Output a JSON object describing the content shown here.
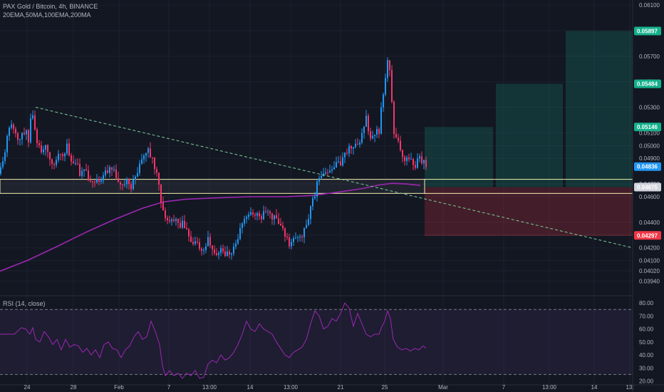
{
  "header": {
    "title": "PAX Gold / Bitcoin, 4h, BINANCE",
    "indicators": "20EMA,50MA,100EMA,200MA"
  },
  "rsi_label": "RSI (14, close)",
  "colors": {
    "background": "#131722",
    "grid": "#1c2030",
    "up": "#2196f3",
    "down": "#f23669",
    "ma": "#9c27b0",
    "trend": "#7ccf9b",
    "box": "#f5f0b0",
    "target": "#14b08c",
    "stop": "#f23645",
    "current": "#2196f3"
  },
  "chart_data": [
    {
      "type": "candlestick",
      "title": "PAX Gold / Bitcoin, 4h, BINANCE",
      "y_axis": {
        "range": [
          0.0383,
          0.0614
        ],
        "ticks": [
          "0.06100",
          "0.05900",
          "0.05700",
          "0.05500",
          "0.05300",
          "0.05100",
          "0.05000",
          "0.04900",
          "0.04700",
          "0.04600",
          "0.04400",
          "0.04300",
          "0.04200",
          "0.04100",
          "0.04020",
          "0.03940"
        ]
      },
      "x_axis": {
        "ticks": [
          {
            "label": "24",
            "x": 38
          },
          {
            "label": "28",
            "x": 103
          },
          {
            "label": "Feb",
            "x": 167
          },
          {
            "label": "7",
            "x": 237
          },
          {
            "label": "13:00",
            "x": 294
          },
          {
            "label": "14",
            "x": 351
          },
          {
            "label": "13:00",
            "x": 408
          },
          {
            "label": "21",
            "x": 478
          },
          {
            "label": "25",
            "x": 540
          },
          {
            "label": "Mar",
            "x": 622
          },
          {
            "label": "7",
            "x": 707
          },
          {
            "label": "13:00",
            "x": 771
          },
          {
            "label": "14",
            "x": 834
          },
          {
            "label": "13:",
            "x": 884
          }
        ]
      },
      "price_path": [
        [
          0,
          0.0478
        ],
        [
          6,
          0.0494
        ],
        [
          12,
          0.051
        ],
        [
          18,
          0.0516
        ],
        [
          24,
          0.0505
        ],
        [
          30,
          0.0508
        ],
        [
          36,
          0.0512
        ],
        [
          40,
          0.0502
        ],
        [
          44,
          0.053
        ],
        [
          48,
          0.052
        ],
        [
          52,
          0.05
        ],
        [
          58,
          0.0496
        ],
        [
          64,
          0.0503
        ],
        [
          70,
          0.049
        ],
        [
          76,
          0.0487
        ],
        [
          82,
          0.0496
        ],
        [
          88,
          0.0492
        ],
        [
          94,
          0.05
        ],
        [
          100,
          0.0489
        ],
        [
          106,
          0.0487
        ],
        [
          112,
          0.0479
        ],
        [
          118,
          0.0482
        ],
        [
          124,
          0.0476
        ],
        [
          130,
          0.0472
        ],
        [
          136,
          0.0476
        ],
        [
          142,
          0.0471
        ],
        [
          148,
          0.048
        ],
        [
          154,
          0.0483
        ],
        [
          160,
          0.0479
        ],
        [
          166,
          0.047
        ],
        [
          172,
          0.0467
        ],
        [
          178,
          0.0471
        ],
        [
          184,
          0.0469
        ],
        [
          190,
          0.0475
        ],
        [
          196,
          0.0487
        ],
        [
          202,
          0.0492
        ],
        [
          208,
          0.0495
        ],
        [
          214,
          0.049
        ],
        [
          220,
          0.0478
        ],
        [
          226,
          0.0458
        ],
        [
          232,
          0.0442
        ],
        [
          238,
          0.044
        ],
        [
          244,
          0.0442
        ],
        [
          250,
          0.0438
        ],
        [
          256,
          0.0439
        ],
        [
          262,
          0.0434
        ],
        [
          268,
          0.0424
        ],
        [
          274,
          0.0425
        ],
        [
          280,
          0.042
        ],
        [
          286,
          0.0418
        ],
        [
          292,
          0.0426
        ],
        [
          298,
          0.042
        ],
        [
          304,
          0.0414
        ],
        [
          310,
          0.042
        ],
        [
          316,
          0.0416
        ],
        [
          322,
          0.0413
        ],
        [
          328,
          0.042
        ],
        [
          334,
          0.0428
        ],
        [
          340,
          0.0437
        ],
        [
          346,
          0.0444
        ],
        [
          352,
          0.0446
        ],
        [
          358,
          0.0447
        ],
        [
          364,
          0.0443
        ],
        [
          370,
          0.0446
        ],
        [
          376,
          0.0449
        ],
        [
          382,
          0.0445
        ],
        [
          388,
          0.0442
        ],
        [
          394,
          0.0439
        ],
        [
          400,
          0.0431
        ],
        [
          406,
          0.0424
        ],
        [
          412,
          0.0426
        ],
        [
          418,
          0.0428
        ],
        [
          424,
          0.0431
        ],
        [
          430,
          0.0436
        ],
        [
          436,
          0.0452
        ],
        [
          442,
          0.0463
        ],
        [
          448,
          0.0475
        ],
        [
          454,
          0.0477
        ],
        [
          460,
          0.048
        ],
        [
          466,
          0.0479
        ],
        [
          472,
          0.0485
        ],
        [
          478,
          0.0486
        ],
        [
          484,
          0.0492
        ],
        [
          490,
          0.0498
        ],
        [
          496,
          0.0496
        ],
        [
          502,
          0.0501
        ],
        [
          508,
          0.0507
        ],
        [
          514,
          0.0521
        ],
        [
          520,
          0.0506
        ],
        [
          526,
          0.0509
        ],
        [
          532,
          0.0512
        ],
        [
          536,
          0.0532
        ],
        [
          540,
          0.055
        ],
        [
          544,
          0.0566
        ],
        [
          548,
          0.0558
        ],
        [
          552,
          0.051
        ],
        [
          558,
          0.0503
        ],
        [
          564,
          0.0494
        ],
        [
          570,
          0.0488
        ],
        [
          576,
          0.0489
        ],
        [
          582,
          0.0484
        ],
        [
          588,
          0.0489
        ],
        [
          594,
          0.0487
        ],
        [
          598,
          0.0484
        ]
      ],
      "moving_average": [
        [
          0,
          0.04017
        ],
        [
          40,
          0.04105
        ],
        [
          80,
          0.0421
        ],
        [
          120,
          0.0432
        ],
        [
          160,
          0.0442
        ],
        [
          200,
          0.0451
        ],
        [
          230,
          0.0456
        ],
        [
          260,
          0.0458
        ],
        [
          300,
          0.0459
        ],
        [
          350,
          0.046
        ],
        [
          400,
          0.046
        ],
        [
          440,
          0.0461
        ],
        [
          480,
          0.0464
        ],
        [
          510,
          0.04665
        ],
        [
          530,
          0.0469
        ],
        [
          550,
          0.04705
        ],
        [
          570,
          0.047
        ],
        [
          590,
          0.04688
        ]
      ],
      "trendline": {
        "from": [
          50,
          0.053
        ],
        "to": [
          888,
          0.042
        ]
      },
      "support_box": {
        "x_start": 0,
        "x_end": 888,
        "y_top": 0.04736,
        "y_bottom": 0.04626
      },
      "position": {
        "x_start": 596,
        "x_end": 888,
        "entry": 0.04675,
        "stop": 0.04297,
        "targets": [
          {
            "x_start": 596,
            "x_end": 692,
            "value": 0.05146
          },
          {
            "x_start": 696,
            "x_end": 790,
            "value": 0.05484
          },
          {
            "x_start": 794,
            "x_end": 888,
            "value": 0.05897
          }
        ]
      },
      "price_labels": [
        {
          "text": "0.05897",
          "value": 0.05897,
          "kind": "target"
        },
        {
          "text": "0.05484",
          "value": 0.05484,
          "kind": "target"
        },
        {
          "text": "0.05146",
          "value": 0.05146,
          "kind": "target"
        },
        {
          "text": "0.04836",
          "value": 0.04836,
          "kind": "current"
        },
        {
          "text": "0.04675",
          "value": 0.04675,
          "kind": "entry"
        },
        {
          "text": "0.04297",
          "value": 0.04297,
          "kind": "stop"
        }
      ]
    },
    {
      "type": "line",
      "title": "RSI (14, close)",
      "y_axis": {
        "range": [
          17,
          85
        ],
        "ticks": [
          "80.00",
          "70.00",
          "60.00",
          "50.00",
          "40.00",
          "30.00",
          "20.00"
        ]
      },
      "bands": [
        75,
        25
      ],
      "series": [
        [
          0,
          56
        ],
        [
          10,
          56
        ],
        [
          20,
          56
        ],
        [
          30,
          61
        ],
        [
          36,
          60
        ],
        [
          42,
          56
        ],
        [
          46,
          61
        ],
        [
          50,
          52
        ],
        [
          56,
          50
        ],
        [
          62,
          58
        ],
        [
          68,
          54
        ],
        [
          74,
          48
        ],
        [
          80,
          52
        ],
        [
          86,
          44
        ],
        [
          92,
          52
        ],
        [
          98,
          46
        ],
        [
          104,
          48
        ],
        [
          110,
          47
        ],
        [
          116,
          42
        ],
        [
          122,
          45
        ],
        [
          128,
          40
        ],
        [
          134,
          44
        ],
        [
          140,
          38
        ],
        [
          146,
          48
        ],
        [
          152,
          50
        ],
        [
          158,
          45
        ],
        [
          164,
          44
        ],
        [
          170,
          38
        ],
        [
          176,
          44
        ],
        [
          182,
          47
        ],
        [
          188,
          54
        ],
        [
          194,
          58
        ],
        [
          200,
          52
        ],
        [
          206,
          54
        ],
        [
          212,
          66
        ],
        [
          218,
          58
        ],
        [
          224,
          48
        ],
        [
          228,
          32
        ],
        [
          232,
          24
        ],
        [
          238,
          28
        ],
        [
          244,
          24
        ],
        [
          250,
          26
        ],
        [
          256,
          22
        ],
        [
          262,
          26
        ],
        [
          268,
          24
        ],
        [
          274,
          28
        ],
        [
          280,
          22
        ],
        [
          286,
          23
        ],
        [
          292,
          33
        ],
        [
          298,
          36
        ],
        [
          304,
          34
        ],
        [
          310,
          40
        ],
        [
          316,
          36
        ],
        [
          322,
          38
        ],
        [
          328,
          42
        ],
        [
          334,
          48
        ],
        [
          340,
          56
        ],
        [
          346,
          66
        ],
        [
          352,
          60
        ],
        [
          358,
          58
        ],
        [
          364,
          64
        ],
        [
          370,
          60
        ],
        [
          376,
          58
        ],
        [
          382,
          56
        ],
        [
          388,
          50
        ],
        [
          394,
          45
        ],
        [
          400,
          40
        ],
        [
          406,
          38
        ],
        [
          412,
          42
        ],
        [
          418,
          44
        ],
        [
          424,
          46
        ],
        [
          430,
          52
        ],
        [
          436,
          64
        ],
        [
          442,
          74
        ],
        [
          448,
          70
        ],
        [
          454,
          60
        ],
        [
          460,
          62
        ],
        [
          466,
          68
        ],
        [
          472,
          66
        ],
        [
          478,
          72
        ],
        [
          484,
          80
        ],
        [
          490,
          76
        ],
        [
          496,
          62
        ],
        [
          502,
          72
        ],
        [
          508,
          64
        ],
        [
          514,
          56
        ],
        [
          520,
          54
        ],
        [
          526,
          56
        ],
        [
          532,
          56
        ],
        [
          536,
          62
        ],
        [
          540,
          66
        ],
        [
          544,
          74
        ],
        [
          548,
          68
        ],
        [
          552,
          52
        ],
        [
          558,
          46
        ],
        [
          564,
          44
        ],
        [
          570,
          45
        ],
        [
          576,
          43
        ],
        [
          582,
          45
        ],
        [
          588,
          44
        ],
        [
          594,
          47
        ],
        [
          598,
          45
        ]
      ]
    }
  ]
}
